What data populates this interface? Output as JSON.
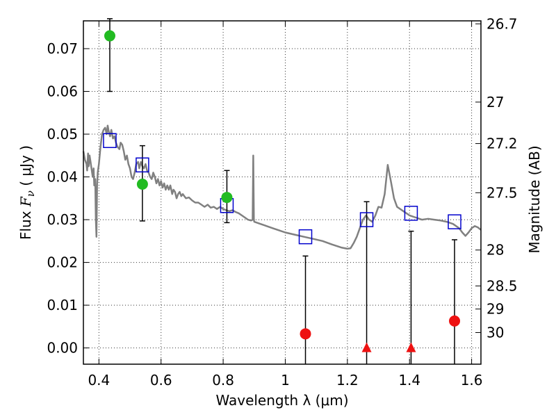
{
  "chart_data": {
    "type": "scatter",
    "xlabel": "Wavelength  λ (μm)",
    "ylabel": "Flux  F_ν  ( μJy )",
    "ylabel_parts": {
      "pre": "Flux  ",
      "var": "F",
      "sub": "ν",
      "post": "  ( μJy )"
    },
    "y2label": "Magnitude (AB)",
    "xlim": [
      0.35,
      1.63
    ],
    "ylim": [
      -0.0038,
      0.0765
    ],
    "x_ticks": [
      {
        "value": 0.4,
        "label": "0.4"
      },
      {
        "value": 0.6,
        "label": "0.6"
      },
      {
        "value": 0.8,
        "label": "0.8"
      },
      {
        "value": 1.0,
        "label": "1"
      },
      {
        "value": 1.2,
        "label": "1.2"
      },
      {
        "value": 1.4,
        "label": "1.4"
      },
      {
        "value": 1.6,
        "label": "1.6"
      }
    ],
    "y_ticks": [
      {
        "value": 0.0,
        "label": "0.00"
      },
      {
        "value": 0.01,
        "label": "0.01"
      },
      {
        "value": 0.02,
        "label": "0.02"
      },
      {
        "value": 0.03,
        "label": "0.03"
      },
      {
        "value": 0.04,
        "label": "0.04"
      },
      {
        "value": 0.05,
        "label": "0.05"
      },
      {
        "value": 0.06,
        "label": "0.06"
      },
      {
        "value": 0.07,
        "label": "0.07"
      }
    ],
    "y2_ticks": [
      {
        "label": "26.7",
        "flux": 0.0758
      },
      {
        "label": "27",
        "flux": 0.0575
      },
      {
        "label": "27.2",
        "flux": 0.0478
      },
      {
        "label": "27.5",
        "flux": 0.0363
      },
      {
        "label": "28",
        "flux": 0.0229
      },
      {
        "label": "28.5",
        "flux": 0.0145
      },
      {
        "label": "29",
        "flux": 0.0091
      },
      {
        "label": "30",
        "flux": 0.0036
      }
    ],
    "grid": true,
    "colors": {
      "model": "#808080",
      "detection": "#22bb22",
      "nondetection": "#ee1111",
      "model_band": "#0000cc",
      "errorbar": "#000000"
    },
    "model_spectrum": [
      [
        0.35,
        0.046
      ],
      [
        0.355,
        0.044
      ],
      [
        0.36,
        0.043
      ],
      [
        0.362,
        0.0415
      ],
      [
        0.365,
        0.0455
      ],
      [
        0.367,
        0.0425
      ],
      [
        0.37,
        0.045
      ],
      [
        0.373,
        0.0435
      ],
      [
        0.376,
        0.042
      ],
      [
        0.38,
        0.04
      ],
      [
        0.383,
        0.042
      ],
      [
        0.385,
        0.038
      ],
      [
        0.388,
        0.0395
      ],
      [
        0.39,
        0.03
      ],
      [
        0.392,
        0.026
      ],
      [
        0.394,
        0.038
      ],
      [
        0.396,
        0.041
      ],
      [
        0.4,
        0.043
      ],
      [
        0.405,
        0.047
      ],
      [
        0.41,
        0.05
      ],
      [
        0.415,
        0.051
      ],
      [
        0.42,
        0.0515
      ],
      [
        0.425,
        0.05
      ],
      [
        0.428,
        0.052
      ],
      [
        0.432,
        0.0505
      ],
      [
        0.436,
        0.0495
      ],
      [
        0.44,
        0.051
      ],
      [
        0.445,
        0.049
      ],
      [
        0.45,
        0.0495
      ],
      [
        0.455,
        0.048
      ],
      [
        0.46,
        0.047
      ],
      [
        0.466,
        0.0465
      ],
      [
        0.47,
        0.048
      ],
      [
        0.475,
        0.0475
      ],
      [
        0.48,
        0.046
      ],
      [
        0.485,
        0.044
      ],
      [
        0.49,
        0.045
      ],
      [
        0.495,
        0.043
      ],
      [
        0.5,
        0.042
      ],
      [
        0.505,
        0.04
      ],
      [
        0.51,
        0.0395
      ],
      [
        0.515,
        0.041
      ],
      [
        0.52,
        0.043
      ],
      [
        0.526,
        0.0435
      ],
      [
        0.53,
        0.042
      ],
      [
        0.535,
        0.0435
      ],
      [
        0.54,
        0.0425
      ],
      [
        0.545,
        0.042
      ],
      [
        0.55,
        0.043
      ],
      [
        0.555,
        0.0415
      ],
      [
        0.56,
        0.041
      ],
      [
        0.565,
        0.04
      ],
      [
        0.57,
        0.0395
      ],
      [
        0.575,
        0.041
      ],
      [
        0.58,
        0.04
      ],
      [
        0.585,
        0.0385
      ],
      [
        0.59,
        0.0395
      ],
      [
        0.595,
        0.038
      ],
      [
        0.6,
        0.039
      ],
      [
        0.605,
        0.0375
      ],
      [
        0.61,
        0.0385
      ],
      [
        0.615,
        0.037
      ],
      [
        0.62,
        0.038
      ],
      [
        0.625,
        0.037
      ],
      [
        0.63,
        0.038
      ],
      [
        0.636,
        0.036
      ],
      [
        0.64,
        0.037
      ],
      [
        0.645,
        0.0365
      ],
      [
        0.65,
        0.035
      ],
      [
        0.655,
        0.036
      ],
      [
        0.66,
        0.0365
      ],
      [
        0.665,
        0.0355
      ],
      [
        0.67,
        0.036
      ],
      [
        0.675,
        0.0355
      ],
      [
        0.68,
        0.035
      ],
      [
        0.69,
        0.0352
      ],
      [
        0.7,
        0.0345
      ],
      [
        0.71,
        0.034
      ],
      [
        0.72,
        0.034
      ],
      [
        0.73,
        0.0335
      ],
      [
        0.74,
        0.033
      ],
      [
        0.75,
        0.0335
      ],
      [
        0.76,
        0.0328
      ],
      [
        0.77,
        0.033
      ],
      [
        0.78,
        0.0325
      ],
      [
        0.79,
        0.033
      ],
      [
        0.8,
        0.0325
      ],
      [
        0.81,
        0.0322
      ],
      [
        0.82,
        0.032
      ],
      [
        0.83,
        0.0322
      ],
      [
        0.84,
        0.0318
      ],
      [
        0.85,
        0.0315
      ],
      [
        0.86,
        0.031
      ],
      [
        0.87,
        0.0305
      ],
      [
        0.88,
        0.03
      ],
      [
        0.89,
        0.0298
      ],
      [
        0.895,
        0.03
      ],
      [
        0.897,
        0.045
      ],
      [
        0.899,
        0.03
      ],
      [
        0.9,
        0.0295
      ],
      [
        0.92,
        0.029
      ],
      [
        0.94,
        0.0285
      ],
      [
        0.96,
        0.028
      ],
      [
        0.98,
        0.0275
      ],
      [
        1.0,
        0.027
      ],
      [
        1.03,
        0.0265
      ],
      [
        1.06,
        0.026
      ],
      [
        1.09,
        0.0255
      ],
      [
        1.12,
        0.025
      ],
      [
        1.15,
        0.0242
      ],
      [
        1.18,
        0.0235
      ],
      [
        1.2,
        0.0232
      ],
      [
        1.21,
        0.0233
      ],
      [
        1.22,
        0.0245
      ],
      [
        1.23,
        0.026
      ],
      [
        1.24,
        0.028
      ],
      [
        1.25,
        0.03
      ],
      [
        1.26,
        0.031
      ],
      [
        1.27,
        0.03
      ],
      [
        1.28,
        0.0295
      ],
      [
        1.29,
        0.031
      ],
      [
        1.3,
        0.033
      ],
      [
        1.31,
        0.0328
      ],
      [
        1.32,
        0.036
      ],
      [
        1.33,
        0.0428
      ],
      [
        1.34,
        0.039
      ],
      [
        1.35,
        0.035
      ],
      [
        1.36,
        0.033
      ],
      [
        1.38,
        0.032
      ],
      [
        1.4,
        0.031
      ],
      [
        1.42,
        0.0305
      ],
      [
        1.44,
        0.03
      ],
      [
        1.46,
        0.0302
      ],
      [
        1.48,
        0.03
      ],
      [
        1.5,
        0.0298
      ],
      [
        1.52,
        0.0295
      ],
      [
        1.54,
        0.029
      ],
      [
        1.56,
        0.028
      ],
      [
        1.57,
        0.027
      ],
      [
        1.58,
        0.0262
      ],
      [
        1.59,
        0.027
      ],
      [
        1.6,
        0.028
      ],
      [
        1.61,
        0.0285
      ],
      [
        1.62,
        0.0282
      ],
      [
        1.63,
        0.0276
      ]
    ],
    "model_band_fluxes": [
      {
        "x": 0.435,
        "y": 0.0485
      },
      {
        "x": 0.54,
        "y": 0.0428
      },
      {
        "x": 0.812,
        "y": 0.0333
      },
      {
        "x": 1.065,
        "y": 0.026
      },
      {
        "x": 1.262,
        "y": 0.03
      },
      {
        "x": 1.405,
        "y": 0.0315
      },
      {
        "x": 1.545,
        "y": 0.0295
      }
    ],
    "detections": [
      {
        "x": 0.435,
        "y": 0.073,
        "yerr_low": 0.06,
        "yerr_high": 0.077
      },
      {
        "x": 0.54,
        "y": 0.0383,
        "yerr_low": 0.0297,
        "yerr_high": 0.0473
      },
      {
        "x": 0.812,
        "y": 0.0352,
        "yerr_low": 0.0293,
        "yerr_high": 0.0415
      }
    ],
    "nondetections": [
      {
        "x": 1.065,
        "y": 0.0033,
        "marker": "circle",
        "yerr_low": -0.0038,
        "yerr_high": 0.0215
      },
      {
        "x": 1.262,
        "y": 0.0,
        "marker": "triangle",
        "yerr_low": -0.0038,
        "yerr_high": 0.0342
      },
      {
        "x": 1.405,
        "y": 0.0,
        "marker": "triangle",
        "yerr_low": -0.0038,
        "yerr_high": 0.0273
      },
      {
        "x": 1.545,
        "y": 0.0063,
        "marker": "circle",
        "yerr_low": -0.0038,
        "yerr_high": 0.0253
      }
    ]
  }
}
